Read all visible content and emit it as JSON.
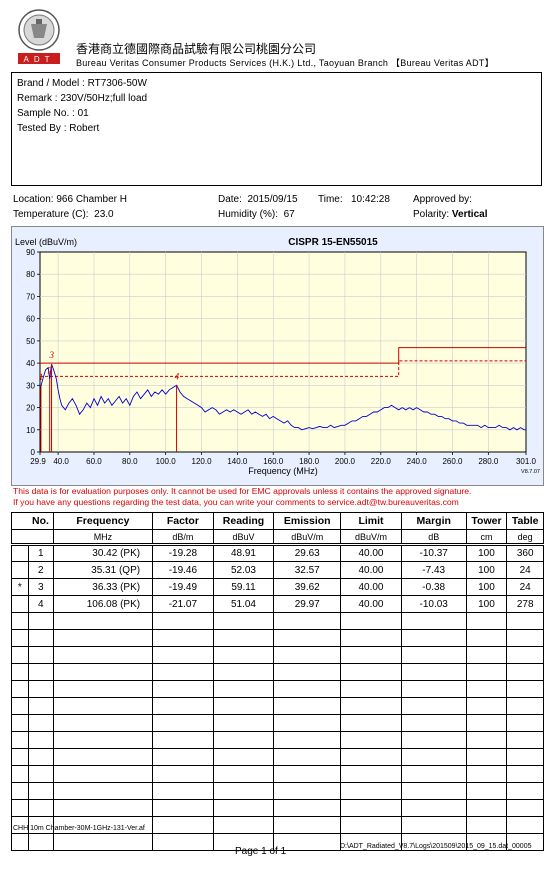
{
  "header": {
    "company_cn": "香港商立德國際商品試驗有限公司桃園分公司",
    "company_en": "Bureau Veritas Consumer Products Services (H.K.) Ltd., Taoyuan Branch 【Bureau Veritas ADT】",
    "logo_text": "ADT"
  },
  "info": {
    "brand_model": "Brand / Model : RT7306-50W",
    "remark": "Remark : 230V/50Hz;full load",
    "sample_no": "Sample No. : 01",
    "tested_by": "Tested By : Robert"
  },
  "meta": {
    "location_label": "Location:",
    "location_value": "966 Chamber H",
    "date_label": "Date:",
    "date_value": "2015/09/15",
    "time_label": "Time:",
    "time_value": "10:42:28",
    "approved_label": "Approved by:",
    "temp_label": "Temperature (C):",
    "temp_value": "23.0",
    "humidity_label": "Humidity (%):",
    "humidity_value": "67",
    "polarity_label": "Polarity:",
    "polarity_value": "Vertical"
  },
  "chart_data": {
    "type": "line",
    "title": "CISPR 15-EN55015",
    "ylabel": "Level (dBuV/m)",
    "xlabel": "Frequency (MHz)",
    "version": "V8.7.07",
    "xlim": [
      29.9,
      301.0
    ],
    "ylim": [
      0,
      90
    ],
    "xticks": [
      29.9,
      40.0,
      60.0,
      80.0,
      100.0,
      120.0,
      140.0,
      160.0,
      180.0,
      200.0,
      220.0,
      240.0,
      260.0,
      280.0,
      301.0
    ],
    "xtick_labels": [
      "29.9",
      "40.0",
      "60.0",
      "80.0",
      "100.0",
      "120.0",
      "140.0",
      "160.0",
      "180.0",
      "200.0",
      "220.0",
      "240.0",
      "260.0",
      "280.0",
      "301.0"
    ],
    "yticks": [
      0,
      10,
      20,
      30,
      40,
      50,
      60,
      70,
      80,
      90
    ],
    "limit_line": [
      [
        29.9,
        40
      ],
      [
        230,
        40
      ],
      [
        230,
        47
      ],
      [
        301,
        47
      ]
    ],
    "margin_line": [
      [
        29.9,
        34
      ],
      [
        230,
        34
      ],
      [
        230,
        41
      ],
      [
        301,
        41
      ]
    ],
    "trace": [
      [
        29.9,
        30
      ],
      [
        30.42,
        29.6
      ],
      [
        31.5,
        33
      ],
      [
        33,
        37
      ],
      [
        34.5,
        38
      ],
      [
        35.31,
        32.6
      ],
      [
        36.33,
        39.6
      ],
      [
        37.5,
        37
      ],
      [
        39,
        33
      ],
      [
        40,
        28
      ],
      [
        41,
        24
      ],
      [
        42,
        21
      ],
      [
        44,
        19
      ],
      [
        46,
        22
      ],
      [
        48,
        24
      ],
      [
        50,
        21
      ],
      [
        52,
        17
      ],
      [
        54,
        19
      ],
      [
        56,
        22
      ],
      [
        58,
        20
      ],
      [
        60,
        24
      ],
      [
        62,
        21
      ],
      [
        64,
        25
      ],
      [
        66,
        22
      ],
      [
        68,
        24
      ],
      [
        70,
        21
      ],
      [
        72,
        23
      ],
      [
        74,
        25
      ],
      [
        76,
        22
      ],
      [
        78,
        24
      ],
      [
        80,
        21
      ],
      [
        82,
        25
      ],
      [
        84,
        27
      ],
      [
        86,
        24
      ],
      [
        88,
        26
      ],
      [
        90,
        28
      ],
      [
        92,
        25
      ],
      [
        94,
        27
      ],
      [
        96,
        26
      ],
      [
        98,
        28
      ],
      [
        100,
        26
      ],
      [
        102,
        28
      ],
      [
        104,
        29
      ],
      [
        106.08,
        30.0
      ],
      [
        108,
        27
      ],
      [
        110,
        25
      ],
      [
        112,
        24
      ],
      [
        114,
        23
      ],
      [
        116,
        22
      ],
      [
        118,
        21
      ],
      [
        120,
        20
      ],
      [
        122,
        18
      ],
      [
        124,
        19
      ],
      [
        126,
        20
      ],
      [
        128,
        19
      ],
      [
        130,
        17
      ],
      [
        132,
        18
      ],
      [
        134,
        19
      ],
      [
        136,
        18
      ],
      [
        138,
        19
      ],
      [
        140,
        18
      ],
      [
        142,
        17
      ],
      [
        144,
        18
      ],
      [
        146,
        19
      ],
      [
        148,
        17
      ],
      [
        150,
        18
      ],
      [
        152,
        17
      ],
      [
        154,
        16
      ],
      [
        156,
        17
      ],
      [
        158,
        15
      ],
      [
        160,
        16
      ],
      [
        162,
        15
      ],
      [
        164,
        14
      ],
      [
        166,
        13
      ],
      [
        168,
        14
      ],
      [
        170,
        12
      ],
      [
        172,
        11
      ],
      [
        174,
        11
      ],
      [
        176,
        10
      ],
      [
        178,
        10.5
      ],
      [
        180,
        11
      ],
      [
        182,
        10.5
      ],
      [
        184,
        11
      ],
      [
        186,
        11.5
      ],
      [
        188,
        11
      ],
      [
        190,
        11
      ],
      [
        192,
        12
      ],
      [
        194,
        11
      ],
      [
        196,
        11.5
      ],
      [
        198,
        12
      ],
      [
        200,
        12
      ],
      [
        202,
        13
      ],
      [
        204,
        14
      ],
      [
        206,
        14
      ],
      [
        208,
        15
      ],
      [
        210,
        16
      ],
      [
        212,
        16
      ],
      [
        214,
        17
      ],
      [
        216,
        18
      ],
      [
        218,
        18
      ],
      [
        220,
        19
      ],
      [
        222,
        20
      ],
      [
        224,
        20
      ],
      [
        226,
        21
      ],
      [
        228,
        20
      ],
      [
        230,
        19
      ],
      [
        232,
        20
      ],
      [
        234,
        19
      ],
      [
        236,
        20
      ],
      [
        238,
        19
      ],
      [
        240,
        20
      ],
      [
        242,
        19
      ],
      [
        244,
        18
      ],
      [
        246,
        18
      ],
      [
        248,
        17
      ],
      [
        250,
        17
      ],
      [
        252,
        16
      ],
      [
        254,
        16
      ],
      [
        256,
        15
      ],
      [
        258,
        15
      ],
      [
        260,
        14
      ],
      [
        262,
        14
      ],
      [
        264,
        13
      ],
      [
        266,
        13
      ],
      [
        268,
        12
      ],
      [
        270,
        12
      ],
      [
        272,
        12
      ],
      [
        274,
        12
      ],
      [
        276,
        11
      ],
      [
        278,
        12
      ],
      [
        280,
        11
      ],
      [
        282,
        11
      ],
      [
        284,
        11
      ],
      [
        286,
        12
      ],
      [
        288,
        11
      ],
      [
        290,
        11
      ],
      [
        292,
        10
      ],
      [
        294,
        11
      ],
      [
        296,
        10
      ],
      [
        298,
        11
      ],
      [
        300,
        10
      ],
      [
        301,
        10
      ]
    ],
    "markers": [
      {
        "label": "1",
        "freq": 30.42,
        "level": 29.63
      },
      {
        "label": "2",
        "freq": 35.31,
        "level": 32.57
      },
      {
        "label": "3",
        "freq": 36.33,
        "level": 39.62
      },
      {
        "label": "4",
        "freq": 106.08,
        "level": 29.97
      }
    ],
    "colors": {
      "trace": "#0000cc",
      "limit": "#cc0000",
      "plot_bg": "#ffffe0",
      "frame_bg": "#e8f0ff",
      "grid": "#cccccc"
    }
  },
  "disclaimer": {
    "line1": "This data is for evaluation purposes only.  It cannot be used for EMC approvals unless it contains the approved signature.",
    "line2": "If you have any questions regarding the test data, you can write your comments to  service.adt@tw.bureauveritas.com"
  },
  "table": {
    "headers": [
      "No.",
      "Frequency",
      "Factor",
      "Reading",
      "Emission",
      "Limit",
      "Margin",
      "Tower",
      "Table"
    ],
    "units": [
      "",
      "MHz",
      "dB/m",
      "dBuV",
      "dBuV/m",
      "dBuV/m",
      "dB",
      "cm",
      "deg"
    ],
    "rows": [
      {
        "mark": "",
        "no": "1",
        "freq": "30.42 (PK)",
        "factor": "-19.28",
        "reading": "48.91",
        "emission": "29.63",
        "limit": "40.00",
        "margin": "-10.37",
        "tower": "100",
        "table": "360"
      },
      {
        "mark": "",
        "no": "2",
        "freq": "35.31 (QP)",
        "factor": "-19.46",
        "reading": "52.03",
        "emission": "32.57",
        "limit": "40.00",
        "margin": "-7.43",
        "tower": "100",
        "table": "24"
      },
      {
        "mark": "*",
        "no": "3",
        "freq": "36.33 (PK)",
        "factor": "-19.49",
        "reading": "59.11",
        "emission": "39.62",
        "limit": "40.00",
        "margin": "-0.38",
        "tower": "100",
        "table": "24"
      },
      {
        "mark": "",
        "no": "4",
        "freq": "106.08 (PK)",
        "factor": "-21.07",
        "reading": "51.04",
        "emission": "29.97",
        "limit": "40.00",
        "margin": "-10.03",
        "tower": "100",
        "table": "278"
      }
    ]
  },
  "footer": {
    "left": "CHH 10m Chamber-30M-1GHz-131-Ver.af",
    "page": "Page  1 of 1",
    "right": "D:\\ADT_Radiated_V8.7\\Logs\\201509\\2015_09_15.dat_00005"
  }
}
